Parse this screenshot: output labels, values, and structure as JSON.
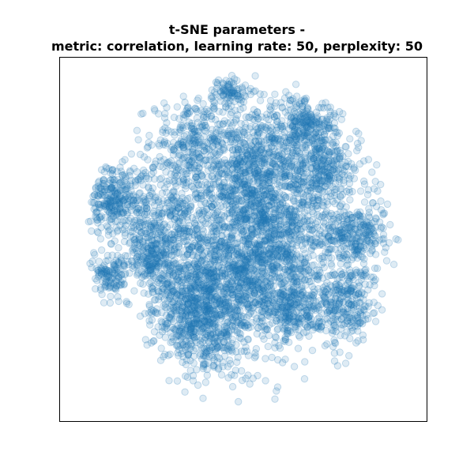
{
  "chart_data": {
    "type": "scatter",
    "title_lines": [
      "t-SNE parameters -",
      "metric: correlation, learning rate: 50, perplexity: 50"
    ],
    "xlabel": "",
    "ylabel": "",
    "axes_ticks": "none",
    "grid": false,
    "legend": "none",
    "marker": "circle",
    "point_color": "#1f77b4",
    "point_alpha": 0.15,
    "approx_point_count": 6000,
    "xlim": [
      -1.0,
      1.0
    ],
    "ylim": [
      -1.0,
      1.0
    ],
    "density_clusters": [
      {
        "x": 0.09,
        "y": 0.19,
        "sd": 0.16,
        "weight": 0.09
      },
      {
        "x": -0.06,
        "y": -0.24,
        "sd": 0.14,
        "weight": 0.08
      },
      {
        "x": -0.24,
        "y": -0.52,
        "sd": 0.13,
        "weight": 0.07
      },
      {
        "x": -0.08,
        "y": 0.86,
        "sd": 0.05,
        "weight": 0.015
      },
      {
        "x": 0.4,
        "y": 0.66,
        "sd": 0.11,
        "weight": 0.05
      },
      {
        "x": -0.8,
        "y": 0.24,
        "sd": 0.1,
        "weight": 0.05
      },
      {
        "x": -0.8,
        "y": -0.22,
        "sd": 0.06,
        "weight": 0.02
      },
      {
        "x": -0.56,
        "y": -0.1,
        "sd": 0.07,
        "weight": 0.03
      },
      {
        "x": 0.6,
        "y": -0.38,
        "sd": 0.11,
        "weight": 0.05
      },
      {
        "x": 0.66,
        "y": 0.04,
        "sd": 0.1,
        "weight": 0.05
      },
      {
        "x": 0.48,
        "y": 0.38,
        "sd": 0.09,
        "weight": 0.04
      },
      {
        "x": 0.3,
        "y": -0.4,
        "sd": 0.09,
        "weight": 0.04
      },
      {
        "x": -0.28,
        "y": 0.56,
        "sd": 0.13,
        "weight": 0.05
      },
      {
        "x": -0.42,
        "y": 0.1,
        "sd": 0.15,
        "weight": 0.06
      },
      {
        "x": 0.1,
        "y": 0.52,
        "sd": 0.14,
        "weight": 0.06
      },
      {
        "x": 0.2,
        "y": -0.1,
        "sd": 0.14,
        "weight": 0.06
      },
      {
        "x": -0.36,
        "y": -0.32,
        "sd": 0.12,
        "weight": 0.05
      },
      {
        "x": 0.0,
        "y": 0.0,
        "sd": 0.42,
        "weight": 0.17
      }
    ]
  }
}
